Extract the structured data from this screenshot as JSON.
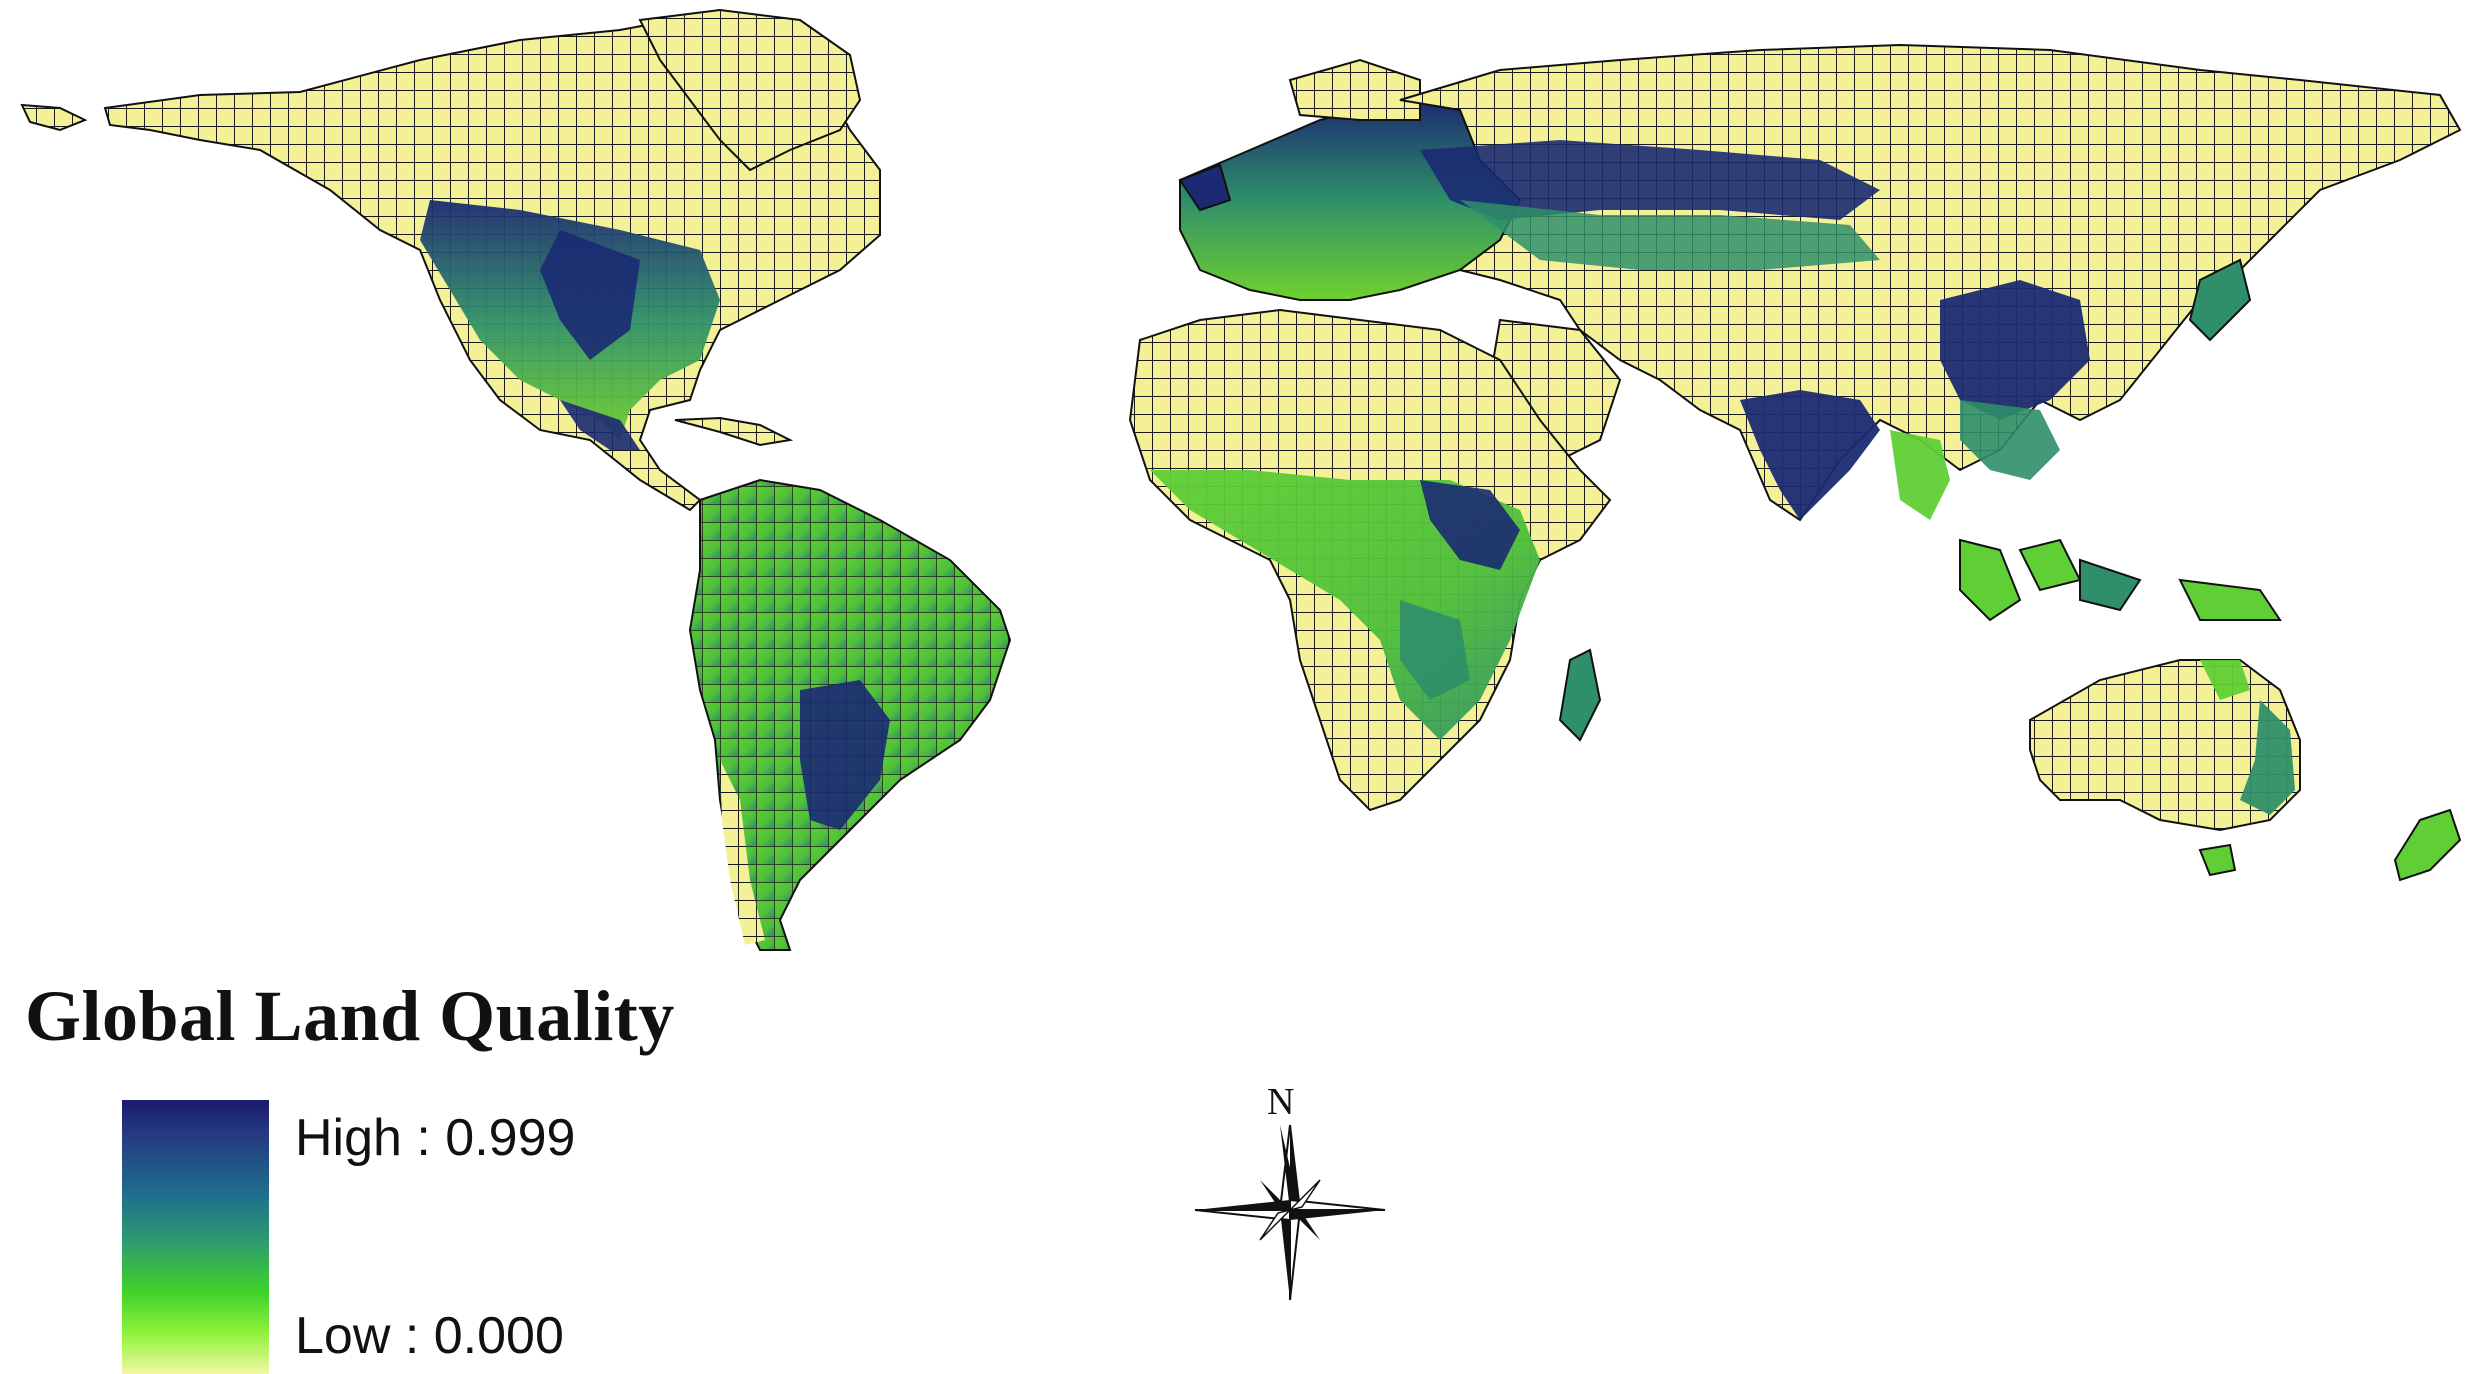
{
  "title": "Global Land Quality",
  "legend": {
    "high_label": "High : 0.999",
    "low_label": "Low : 0.000",
    "ramp_colors": [
      "#1b1a6e",
      "#1f6f8e",
      "#3fd22a",
      "#f2f7a4"
    ]
  },
  "north_arrow": {
    "letter": "N"
  },
  "colors": {
    "desert_fill": "#f3f096",
    "grid_line": "#1a1a1a",
    "high_quality": "#1b2a72",
    "medium_quality": "#2f8f6a",
    "low_quality": "#6fd12e"
  }
}
